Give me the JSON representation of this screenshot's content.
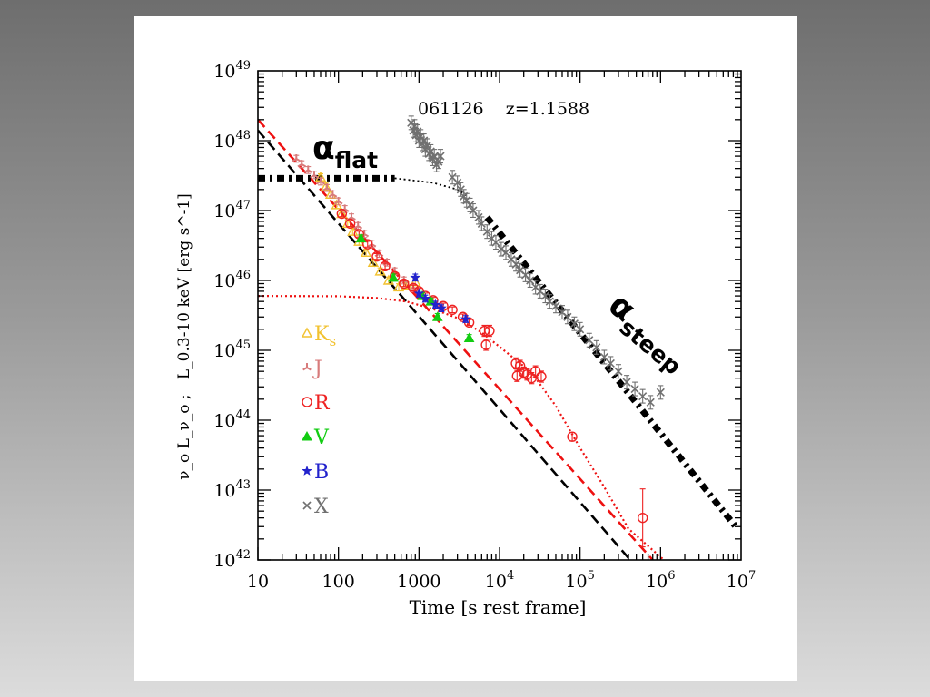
{
  "chart_data": {
    "type": "scatter",
    "title": "061126    z=1.1588",
    "xlabel": "Time [s rest frame]",
    "ylabel": "ν_o L_ν_o ;   L_0.3-10 keV [erg s^-1]",
    "xscale": "log",
    "yscale": "log",
    "xlim": [
      10,
      10000000
    ],
    "ylim": [
      1e+42,
      1e+49
    ],
    "x_ticks": [
      {
        "value": 10,
        "base": "10",
        "exp": ""
      },
      {
        "value": 100,
        "base": "100",
        "exp": ""
      },
      {
        "value": 1000,
        "base": "1000",
        "exp": ""
      },
      {
        "value": 10000,
        "base": "10",
        "exp": "4"
      },
      {
        "value": 100000,
        "base": "10",
        "exp": "5"
      },
      {
        "value": 1000000,
        "base": "10",
        "exp": "6"
      },
      {
        "value": 10000000,
        "base": "10",
        "exp": "7"
      }
    ],
    "y_ticks": [
      {
        "value": 1e+42,
        "base": "10",
        "exp": "42"
      },
      {
        "value": 1e+43,
        "base": "10",
        "exp": "43"
      },
      {
        "value": 1e+44,
        "base": "10",
        "exp": "44"
      },
      {
        "value": 1e+45,
        "base": "10",
        "exp": "45"
      },
      {
        "value": 1e+46,
        "base": "10",
        "exp": "46"
      },
      {
        "value": 1e+47,
        "base": "10",
        "exp": "47"
      },
      {
        "value": 1e+48,
        "base": "10",
        "exp": "48"
      },
      {
        "value": 1e+49,
        "base": "10",
        "exp": "49"
      }
    ],
    "annotations": {
      "alpha_flat": {
        "greek": "α",
        "sub": "flat"
      },
      "alpha_steep": {
        "greek": "α",
        "sub": "steep"
      }
    },
    "legend_placement": "left-middle",
    "colors": {
      "Ks": "#f2c230",
      "J": "#d87b7b",
      "R": "#ee2222",
      "V": "#12cc12",
      "B": "#2222cc",
      "X": "#707070",
      "red_dashed": "#ee1111",
      "black_dashed": "#000000",
      "red_dotted": "#ee1111",
      "black_model": "#000000"
    },
    "series": [
      {
        "name": "K",
        "sub": "s",
        "marker": "triangle-open",
        "color": "#f2c230",
        "points": [
          [
            60,
            3e+47
          ],
          [
            70,
            2.2e+47
          ],
          [
            80,
            1.7e+47
          ],
          [
            95,
            1.2e+47
          ],
          [
            110,
            9e+46
          ],
          [
            130,
            6.5e+46
          ],
          [
            150,
            5e+46
          ],
          [
            180,
            3.6e+46
          ],
          [
            220,
            2.5e+46
          ],
          [
            270,
            1.8e+46
          ],
          [
            330,
            1.35e+46
          ],
          [
            420,
            1e+46
          ],
          [
            560,
            8e+45
          ],
          [
            700,
            8.5e+45
          ],
          [
            900,
            9.5e+45
          ]
        ]
      },
      {
        "name": "J",
        "sub": "",
        "marker": "tri-star",
        "color": "#d87b7b",
        "points": [
          [
            30,
            5.5e+47
          ],
          [
            35,
            4.6e+47
          ],
          [
            42,
            3.8e+47
          ],
          [
            50,
            3.2e+47
          ],
          [
            60,
            2.6e+47
          ],
          [
            72,
            2.1e+47
          ],
          [
            85,
            1.7e+47
          ],
          [
            100,
            1.35e+47
          ],
          [
            120,
            1.05e+47
          ],
          [
            145,
            8e+46
          ],
          [
            175,
            6e+46
          ],
          [
            210,
            4.6e+46
          ],
          [
            260,
            3.3e+46
          ],
          [
            320,
            2.4e+46
          ],
          [
            400,
            1.8e+46
          ],
          [
            500,
            1.35e+46
          ],
          [
            650,
            1e+46
          ],
          [
            850,
            8e+45
          ]
        ]
      },
      {
        "name": "R",
        "sub": "",
        "marker": "circle-open",
        "color": "#ee2222",
        "points": [
          [
            110,
            9e+46
          ],
          [
            140,
            6.5e+46
          ],
          [
            180,
            4.6e+46
          ],
          [
            230,
            3.3e+46
          ],
          [
            300,
            2.2e+46
          ],
          [
            380,
            1.6e+46
          ],
          [
            500,
            1.15e+46
          ],
          [
            650,
            9e+45
          ],
          [
            850,
            7.8e+45
          ],
          [
            1000,
            7e+45
          ],
          [
            1200,
            6e+45
          ],
          [
            1500,
            5.2e+45
          ],
          [
            2000,
            4.3e+45
          ],
          [
            2600,
            3.8e+45
          ],
          [
            3500,
            3e+45
          ],
          [
            4200,
            2.5e+45
          ],
          [
            6500,
            1.9e+45
          ],
          [
            7500,
            1.9e+45
          ],
          [
            6800,
            1.2e+45
          ],
          [
            16000,
            6.5e+44
          ],
          [
            18000,
            6e+44
          ],
          [
            16500,
            4.3e+44
          ],
          [
            20000,
            4.8e+44
          ],
          [
            22000,
            4.5e+44
          ],
          [
            25000,
            4e+44
          ],
          [
            28000,
            5e+44
          ],
          [
            33000,
            4.2e+44
          ],
          [
            80000,
            5.8e+43
          ],
          [
            600000,
            4e+42
          ]
        ],
        "yerr_factor": [
          1.1,
          1.1,
          1.1,
          1.1,
          1.1,
          1.1,
          1.1,
          1.1,
          1.1,
          1.1,
          1.1,
          1.1,
          1.1,
          1.1,
          1.1,
          1.1,
          1.2,
          1.2,
          1.2,
          1.2,
          1.2,
          1.2,
          1.2,
          1.2,
          1.2,
          1.2,
          1.2,
          1.15,
          2.6
        ]
      },
      {
        "name": "V",
        "sub": "",
        "marker": "triangle-filled",
        "color": "#12cc12",
        "points": [
          [
            190,
            4e+46
          ],
          [
            480,
            1.1e+46
          ],
          [
            1100,
            6e+45
          ],
          [
            1400,
            5e+45
          ],
          [
            1700,
            3e+45
          ],
          [
            4200,
            1.5e+45
          ]
        ]
      },
      {
        "name": "B",
        "sub": "",
        "marker": "star",
        "color": "#2222cc",
        "points": [
          [
            900,
            1.1e+46
          ],
          [
            1000,
            6.5e+45
          ],
          [
            1200,
            5.5e+45
          ],
          [
            1600,
            4.5e+45
          ],
          [
            1900,
            4e+45
          ],
          [
            3800,
            2.8e+45
          ]
        ]
      },
      {
        "name": "X",
        "sub": "",
        "marker": "cross",
        "color": "#707070",
        "points": [
          [
            800,
            1.8e+48
          ],
          [
            850,
            1.4e+48
          ],
          [
            880,
            1.6e+48
          ],
          [
            920,
            1.2e+48
          ],
          [
            960,
            1.35e+48
          ],
          [
            1000,
            1e+48
          ],
          [
            1050,
            1.15e+48
          ],
          [
            1100,
            9e+47
          ],
          [
            1150,
            1e+48
          ],
          [
            1200,
            7.5e+47
          ],
          [
            1260,
            8.5e+47
          ],
          [
            1330,
            6.5e+47
          ],
          [
            1400,
            7e+47
          ],
          [
            1480,
            5.5e+47
          ],
          [
            1550,
            6e+47
          ],
          [
            1650,
            4.5e+47
          ],
          [
            1750,
            5e+47
          ],
          [
            1850,
            6e+47
          ],
          [
            2600,
            3e+47
          ],
          [
            3000,
            2.5e+47
          ],
          [
            3300,
            2e+47
          ],
          [
            3600,
            1.6e+47
          ],
          [
            3900,
            1.4e+47
          ],
          [
            4300,
            1.2e+47
          ],
          [
            4700,
            1e+47
          ],
          [
            5500,
            8e+46
          ],
          [
            6000,
            6.5e+46
          ],
          [
            7000,
            5e+46
          ],
          [
            8000,
            4e+46
          ],
          [
            9000,
            3.5e+46
          ],
          [
            10500,
            2.8e+46
          ],
          [
            12000,
            2.5e+46
          ],
          [
            14000,
            2e+46
          ],
          [
            16000,
            1.7e+46
          ],
          [
            18000,
            1.4e+46
          ],
          [
            21000,
            1.2e+46
          ],
          [
            24000,
            1e+46
          ],
          [
            28000,
            8e+45
          ],
          [
            32000,
            7e+45
          ],
          [
            37000,
            6e+45
          ],
          [
            42000,
            5e+45
          ],
          [
            50000,
            4.3e+45
          ],
          [
            60000,
            3.5e+45
          ],
          [
            70000,
            3e+45
          ],
          [
            85000,
            2.4e+45
          ],
          [
            100000,
            2e+45
          ],
          [
            130000,
            1.4e+45
          ],
          [
            160000,
            1.1e+45
          ],
          [
            200000,
            8e+44
          ],
          [
            240000,
            6.5e+44
          ],
          [
            300000,
            5e+44
          ],
          [
            380000,
            3.5e+44
          ],
          [
            480000,
            2.8e+44
          ],
          [
            600000,
            2.2e+44
          ],
          [
            750000,
            1.8e+44
          ],
          [
            1000000,
            2.5e+44
          ]
        ]
      }
    ],
    "curves": [
      {
        "name": "red-dashed-powerlaw",
        "style": "dashed",
        "color": "#ee1111",
        "points": [
          [
            10,
            2e+48
          ],
          [
            800000,
            1e+42
          ]
        ]
      },
      {
        "name": "black-dashed-powerlaw",
        "style": "dashed",
        "color": "#000000",
        "points": [
          [
            10,
            1.4e+48
          ],
          [
            420000,
            1e+42
          ]
        ]
      },
      {
        "name": "red-dotted-model",
        "style": "dotted",
        "color": "#ee1111",
        "points": [
          [
            10,
            6e+45
          ],
          [
            100,
            5.95e+45
          ],
          [
            300,
            5.6e+45
          ],
          [
            700,
            5e+45
          ],
          [
            1500,
            3.9e+45
          ],
          [
            3000,
            2.9e+45
          ],
          [
            6000,
            1.8e+45
          ],
          [
            12000,
            9.5e+44
          ],
          [
            25000,
            4.8e+44
          ],
          [
            50000,
            1.6e+44
          ],
          [
            100000,
            4e+43
          ],
          [
            200000,
            1.1e+43
          ],
          [
            400000,
            2.8e+42
          ],
          [
            1100000,
            1e+42
          ]
        ]
      },
      {
        "name": "black-dotted-model",
        "style": "dotted-thin",
        "color": "#000000",
        "points": [
          [
            500,
            2.9e+47
          ],
          [
            1500,
            2.5e+47
          ],
          [
            3000,
            2e+47
          ],
          [
            4000,
            1.6e+47
          ]
        ]
      },
      {
        "name": "alpha-flat-segment",
        "style": "thick-dash-dot",
        "color": "#000000",
        "points": [
          [
            10,
            2.9e+47
          ],
          [
            500,
            2.9e+47
          ]
        ]
      },
      {
        "name": "alpha-steep-segment",
        "style": "thick-dash-dot",
        "color": "#000000",
        "points": [
          [
            7000,
            8e+46
          ],
          [
            9000000,
            2.8e+42
          ]
        ]
      }
    ]
  }
}
